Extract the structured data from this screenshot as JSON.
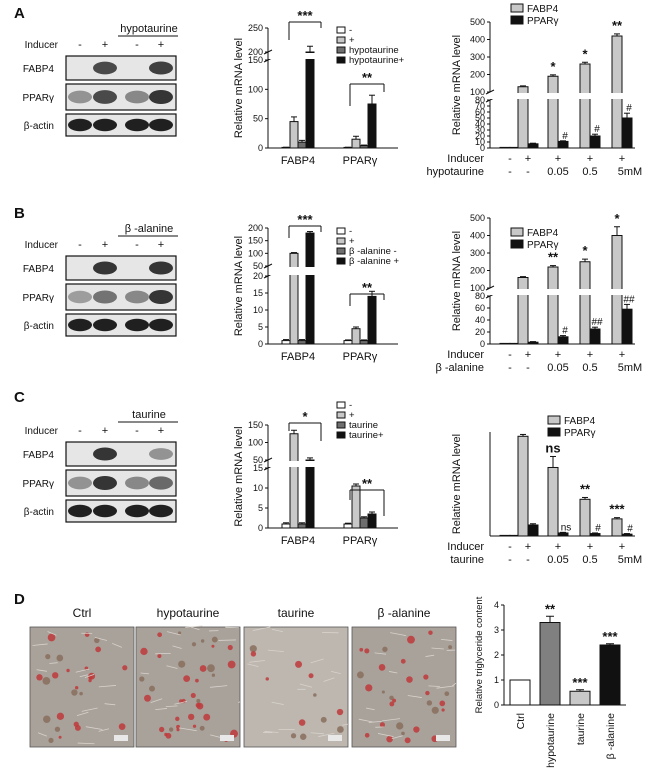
{
  "figure": {
    "panels": {
      "A": {
        "letter": "A",
        "blot": {
          "treatment": "hypotaurine",
          "inducer_label": "Inducer",
          "inducer_signs": [
            "-",
            "+",
            "-",
            "+"
          ],
          "rows": [
            "FABP4",
            "PPARγ",
            "β-actin"
          ]
        },
        "bar_chart": {
          "ylabel": "Relative mRNA level",
          "legend": [
            "-",
            "+",
            "hypotaurine",
            "hypotaurine+"
          ],
          "groups": [
            "FABP4",
            "PPARγ"
          ],
          "ticks_low": [
            "0",
            "50",
            "100",
            "150"
          ],
          "ticks_high": [
            "200",
            "250"
          ],
          "sig": [
            "***",
            "**"
          ]
        },
        "dose_chart": {
          "ylabel": "Relative mRNA level",
          "legend": [
            "FABP4",
            "PPARγ"
          ],
          "ticks_low": [
            "0",
            "10",
            "20",
            "30",
            "40",
            "50",
            "60",
            "70",
            "80"
          ],
          "ticks_high": [
            "100",
            "200",
            "300",
            "400",
            "500"
          ],
          "row1_label": "Inducer",
          "row1": [
            "-",
            "+",
            "+",
            "+",
            "+"
          ],
          "row2_label": "hypotaurine",
          "row2": [
            "-",
            "-",
            "0.05",
            "0.5",
            "5mM"
          ],
          "sig_top": [
            "*",
            "*",
            "**"
          ],
          "sig_hash": [
            "#",
            "#",
            "#"
          ]
        }
      },
      "B": {
        "letter": "B",
        "blot": {
          "treatment": "β -alanine",
          "inducer_label": "Inducer",
          "inducer_signs": [
            "-",
            "+",
            "-",
            "+"
          ],
          "rows": [
            "FABP4",
            "PPARγ",
            "β-actin"
          ]
        },
        "bar_chart": {
          "ylabel": "Relative mRNA level",
          "legend": [
            "-",
            "+",
            "β -alanine -",
            "β -alanine +"
          ],
          "groups": [
            "FABP4",
            "PPARγ"
          ],
          "ticks_low": [
            "0",
            "5",
            "10",
            "15",
            "20"
          ],
          "ticks_high": [
            "50",
            "100",
            "150",
            "200"
          ],
          "sig": [
            "***",
            "**"
          ]
        },
        "dose_chart": {
          "ylabel": "Relative mRNA level",
          "legend": [
            "FABP4",
            "PPARγ"
          ],
          "ticks_low": [
            "0",
            "20",
            "40",
            "60",
            "80"
          ],
          "ticks_high": [
            "100",
            "200",
            "300",
            "400",
            "500"
          ],
          "row1_label": "Inducer",
          "row1": [
            "-",
            "+",
            "+",
            "+",
            "+"
          ],
          "row2_label": "β -alanine",
          "row2": [
            "-",
            "-",
            "0.05",
            "0.5",
            "5mM"
          ],
          "sig_top": [
            "**",
            "*",
            "*"
          ],
          "sig_hash": [
            "#",
            "##",
            "##"
          ]
        }
      },
      "C": {
        "letter": "C",
        "blot": {
          "treatment": "taurine",
          "inducer_label": "Inducer",
          "inducer_signs": [
            "-",
            "+",
            "-",
            "+"
          ],
          "rows": [
            "FABP4",
            "PPARγ",
            "β-actin"
          ]
        },
        "bar_chart": {
          "ylabel": "Relative mRNA level",
          "legend": [
            "-",
            "+",
            "taurine",
            "taurine+"
          ],
          "groups": [
            "FABP4",
            "PPARγ"
          ],
          "ticks_low": [
            "0",
            "5",
            "10",
            "15"
          ],
          "ticks_high": [
            "50",
            "100",
            "150"
          ],
          "sig": [
            "*",
            "**"
          ]
        },
        "dose_chart": {
          "ylabel": "Relative mRNA level",
          "legend": [
            "FABP4",
            "PPARγ"
          ],
          "row1_label": "Inducer",
          "row1": [
            "-",
            "+",
            "+",
            "+",
            "+"
          ],
          "row2_label": "taurine",
          "row2": [
            "-",
            "-",
            "0.05",
            "0.5",
            "5mM"
          ],
          "sig_top": [
            "ns",
            "**",
            "***"
          ],
          "sig_low": [
            "ns",
            "#",
            "#"
          ]
        }
      },
      "D": {
        "letter": "D",
        "images": [
          "Ctrl",
          "hypotaurine",
          "taurine",
          "β -alanine"
        ],
        "chart": {
          "ylabel": "Relative triglyceride content",
          "ticks": [
            "0",
            "1",
            "2",
            "3",
            "4"
          ],
          "sig": [
            "",
            "**",
            "***",
            "***"
          ]
        }
      }
    }
  },
  "chart_data": [
    {
      "id": "A-bar",
      "type": "bar",
      "ylabel": "Relative mRNA level",
      "categories": [
        "FABP4",
        "PPARγ"
      ],
      "series": [
        {
          "name": "-",
          "values": [
            1,
            1
          ],
          "color": "#ffffff"
        },
        {
          "name": "+",
          "values": [
            45,
            15
          ],
          "color": "#c8c8c8"
        },
        {
          "name": "hypotaurine",
          "values": [
            10,
            4
          ],
          "color": "#6e6e6e"
        },
        {
          "name": "hypotaurine+",
          "values": [
            200,
            75
          ],
          "color": "#111111"
        }
      ],
      "errors": [
        [
          0.3,
          0.3
        ],
        [
          8,
          5
        ],
        [
          3,
          1
        ],
        [
          12,
          15
        ]
      ]
    },
    {
      "id": "A-dose",
      "type": "bar",
      "ylabel": "Relative mRNA level",
      "categories": [
        "-/-",
        "+/-",
        "+/0.05",
        "+/0.5",
        "+/5mM"
      ],
      "series": [
        {
          "name": "FABP4",
          "values": [
            1,
            130,
            190,
            260,
            420
          ],
          "color": "#c8c8c8"
        },
        {
          "name": "PPARγ",
          "values": [
            1,
            7,
            11,
            20,
            50
          ],
          "color": "#111111"
        }
      ],
      "errors": [
        [
          0,
          5,
          8,
          10,
          12
        ],
        [
          0,
          1,
          1,
          3,
          8
        ]
      ]
    },
    {
      "id": "B-bar",
      "type": "bar",
      "ylabel": "Relative mRNA level",
      "categories": [
        "FABP4",
        "PPARγ"
      ],
      "series": [
        {
          "name": "-",
          "values": [
            1,
            1
          ],
          "color": "#ffffff"
        },
        {
          "name": "+",
          "values": [
            100,
            4.5
          ],
          "color": "#c8c8c8"
        },
        {
          "name": "β -alanine -",
          "values": [
            1,
            1
          ],
          "color": "#6e6e6e"
        },
        {
          "name": "β -alanine +",
          "values": [
            180,
            14
          ],
          "color": "#111111"
        }
      ],
      "errors": [
        [
          0.3,
          0.2
        ],
        [
          3,
          0.5
        ],
        [
          0.3,
          0.2
        ],
        [
          6,
          1.5
        ]
      ]
    },
    {
      "id": "B-dose",
      "type": "bar",
      "ylabel": "Relative mRNA level",
      "categories": [
        "-/-",
        "+/-",
        "+/0.05",
        "+/0.5",
        "+/5mM"
      ],
      "series": [
        {
          "name": "FABP4",
          "values": [
            1,
            160,
            220,
            250,
            400
          ],
          "color": "#c8c8c8"
        },
        {
          "name": "PPARγ",
          "values": [
            1,
            3,
            12,
            25,
            58
          ],
          "color": "#111111"
        }
      ],
      "errors": [
        [
          0,
          5,
          8,
          15,
          50
        ],
        [
          0,
          1,
          2,
          3,
          8
        ]
      ]
    },
    {
      "id": "C-bar",
      "type": "bar",
      "ylabel": "Relative mRNA level",
      "categories": [
        "FABP4",
        "PPARγ"
      ],
      "series": [
        {
          "name": "-",
          "values": [
            1,
            1
          ],
          "color": "#ffffff"
        },
        {
          "name": "+",
          "values": [
            125,
            10.5
          ],
          "color": "#c8c8c8"
        },
        {
          "name": "taurine",
          "values": [
            1,
            2.5
          ],
          "color": "#6e6e6e"
        },
        {
          "name": "taurine+",
          "values": [
            50,
            3.5
          ],
          "color": "#111111"
        }
      ],
      "errors": [
        [
          0.3,
          0.2
        ],
        [
          10,
          0.5
        ],
        [
          0.3,
          0.3
        ],
        [
          6,
          0.5
        ]
      ]
    },
    {
      "id": "C-dose",
      "type": "bar",
      "ylabel": "Relative mRNA level",
      "ylim": [
        0,
        170
      ],
      "categories": [
        "-/-",
        "+/-",
        "+/0.05",
        "+/0.5",
        "+/5mM"
      ],
      "series": [
        {
          "name": "FABP4",
          "values": [
            1,
            163,
            112,
            60,
            28
          ],
          "color": "#c8c8c8"
        },
        {
          "name": "PPARγ",
          "values": [
            1,
            18,
            5,
            4,
            3
          ],
          "color": "#111111"
        }
      ],
      "errors": [
        [
          0,
          3,
          18,
          3,
          2
        ],
        [
          0,
          2,
          1,
          1,
          1
        ]
      ]
    },
    {
      "id": "D-bar",
      "type": "bar",
      "ylabel": "Relative triglyceride content",
      "ylim": [
        0,
        4
      ],
      "categories": [
        "Ctrl",
        "hypotaurine",
        "taurine",
        "β -alanine"
      ],
      "values": [
        1,
        3.3,
        0.55,
        2.4
      ],
      "errors": [
        0,
        0.25,
        0.06,
        0.05
      ],
      "colors": [
        "#ffffff",
        "#808080",
        "#c8c8c8",
        "#111111"
      ]
    }
  ]
}
